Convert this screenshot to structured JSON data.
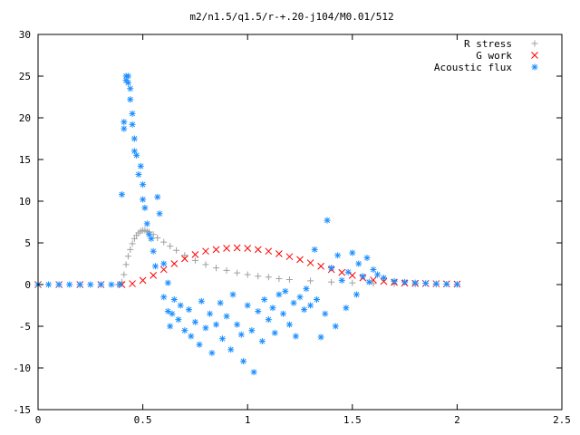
{
  "chart_data": {
    "type": "scatter",
    "title": "m2/n1.5/q1.5/r-+.20-j104/M0.01/512",
    "xlabel": "",
    "ylabel": "",
    "xlim": [
      0,
      2.5
    ],
    "ylim": [
      -15,
      30
    ],
    "xticks": [
      "0",
      "0.5",
      "1",
      "1.5",
      "2",
      "2.5"
    ],
    "yticks": [
      "-15",
      "-10",
      "-5",
      "0",
      "5",
      "10",
      "15",
      "20",
      "25",
      "30"
    ],
    "grid": false,
    "legend_position": "top-right",
    "series": [
      {
        "name": "R stress",
        "marker": "plus",
        "color": "#a0a0a0",
        "x": [
          0.0,
          0.1,
          0.2,
          0.3,
          0.38,
          0.4,
          0.41,
          0.42,
          0.43,
          0.44,
          0.45,
          0.46,
          0.47,
          0.48,
          0.49,
          0.5,
          0.51,
          0.52,
          0.53,
          0.55,
          0.57,
          0.6,
          0.63,
          0.66,
          0.7,
          0.75,
          0.8,
          0.85,
          0.9,
          0.95,
          1.0,
          1.05,
          1.1,
          1.15,
          1.2,
          1.3,
          1.4,
          1.5,
          1.6,
          1.7,
          1.8,
          1.9,
          2.0
        ],
        "y": [
          0,
          0,
          0,
          0,
          0,
          0.3,
          1.2,
          2.4,
          3.4,
          4.2,
          4.9,
          5.5,
          5.9,
          6.2,
          6.4,
          6.5,
          6.5,
          6.4,
          6.3,
          6.0,
          5.6,
          5.1,
          4.6,
          4.1,
          3.5,
          2.9,
          2.4,
          2.0,
          1.7,
          1.4,
          1.2,
          1.0,
          0.9,
          0.7,
          0.6,
          0.45,
          0.3,
          0.2,
          0.12,
          0.08,
          0.05,
          0.03,
          0.02
        ]
      },
      {
        "name": "G work",
        "marker": "cross",
        "color": "#ff0000",
        "x": [
          0.0,
          0.1,
          0.2,
          0.3,
          0.4,
          0.45,
          0.5,
          0.55,
          0.6,
          0.65,
          0.7,
          0.75,
          0.8,
          0.85,
          0.9,
          0.95,
          1.0,
          1.05,
          1.1,
          1.15,
          1.2,
          1.25,
          1.3,
          1.35,
          1.4,
          1.45,
          1.5,
          1.55,
          1.6,
          1.65,
          1.7,
          1.75,
          1.8,
          1.85,
          1.9,
          1.95,
          2.0
        ],
        "y": [
          0,
          0,
          0,
          0,
          0,
          0.1,
          0.5,
          1.1,
          1.8,
          2.5,
          3.1,
          3.6,
          4.0,
          4.2,
          4.35,
          4.4,
          4.35,
          4.2,
          4.0,
          3.7,
          3.35,
          3.0,
          2.6,
          2.2,
          1.8,
          1.45,
          1.1,
          0.8,
          0.55,
          0.38,
          0.25,
          0.18,
          0.14,
          0.12,
          0.1,
          0.08,
          0.05
        ]
      },
      {
        "name": "Acoustic flux",
        "marker": "asterisk",
        "color": "#1e90ff",
        "x": [
          0.0,
          0.05,
          0.1,
          0.15,
          0.2,
          0.25,
          0.3,
          0.35,
          0.39,
          0.4,
          0.41,
          0.41,
          0.42,
          0.42,
          0.43,
          0.43,
          0.44,
          0.44,
          0.45,
          0.45,
          0.46,
          0.46,
          0.47,
          0.48,
          0.49,
          0.5,
          0.5,
          0.51,
          0.52,
          0.53,
          0.54,
          0.55,
          0.56,
          0.57,
          0.58,
          0.6,
          0.62,
          0.63,
          0.6,
          0.62,
          0.64,
          0.65,
          0.67,
          0.68,
          0.7,
          0.72,
          0.73,
          0.75,
          0.77,
          0.78,
          0.8,
          0.82,
          0.83,
          0.85,
          0.87,
          0.88,
          0.9,
          0.92,
          0.93,
          0.95,
          0.97,
          0.98,
          1.0,
          1.02,
          1.03,
          1.05,
          1.07,
          1.08,
          1.1,
          1.12,
          1.13,
          1.15,
          1.17,
          1.18,
          1.2,
          1.22,
          1.23,
          1.25,
          1.27,
          1.28,
          1.3,
          1.32,
          1.33,
          1.35,
          1.37,
          1.38,
          1.4,
          1.42,
          1.43,
          1.45,
          1.47,
          1.48,
          1.5,
          1.52,
          1.53,
          1.55,
          1.57,
          1.58,
          1.6,
          1.62,
          1.65,
          1.7,
          1.75,
          1.8,
          1.85,
          1.9,
          1.95,
          2.0
        ],
        "y": [
          0,
          0,
          0,
          0,
          0,
          0,
          0,
          0,
          0,
          10.8,
          19.5,
          18.7,
          24.5,
          25.0,
          25.0,
          24.2,
          23.5,
          22.2,
          20.5,
          19.2,
          17.5,
          16.0,
          15.5,
          13.2,
          14.2,
          12.0,
          10.2,
          9.2,
          7.3,
          6.0,
          5.5,
          4.0,
          2.2,
          10.5,
          8.5,
          -1.5,
          -3.2,
          -5.0,
          2.5,
          0.2,
          -3.5,
          -1.8,
          -4.2,
          -2.5,
          -5.5,
          -3.0,
          -6.2,
          -4.5,
          -7.2,
          -2.0,
          -5.2,
          -3.5,
          -8.2,
          -4.8,
          -2.2,
          -6.5,
          -3.8,
          -7.8,
          -1.2,
          -4.8,
          -6.0,
          -9.2,
          -2.5,
          -5.5,
          -10.5,
          -3.2,
          -6.8,
          -1.8,
          -4.2,
          -2.8,
          -5.8,
          -1.2,
          -3.5,
          -0.8,
          -4.8,
          -2.2,
          -6.2,
          -1.5,
          -3.0,
          -0.5,
          -2.5,
          4.2,
          -1.8,
          -6.3,
          -3.5,
          7.7,
          2.0,
          -5.0,
          3.5,
          0.5,
          -2.8,
          1.5,
          3.8,
          -1.2,
          2.5,
          1.0,
          3.2,
          0.3,
          1.8,
          1.2,
          0.8,
          0.4,
          0.3,
          0.2,
          0.15,
          0.1,
          0.05,
          0.02
        ]
      }
    ]
  }
}
